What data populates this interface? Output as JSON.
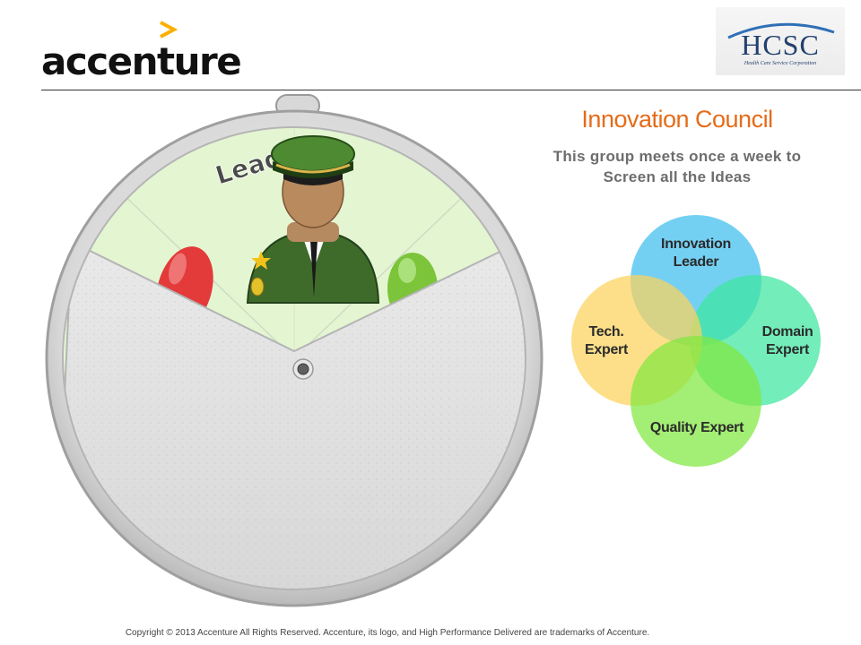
{
  "header": {
    "left_logo_text": "accenture",
    "right_logo_text": "HCSC",
    "right_logo_subtext": "Health Care Service Corporation"
  },
  "wheel": {
    "segment_label": "Leader",
    "icon": "soldier-leader-icon"
  },
  "panel": {
    "title": "Innovation Council",
    "subtitle_line1": "This group meets once a week to",
    "subtitle_line2": "Screen all the Ideas"
  },
  "venn": {
    "circles": [
      {
        "label_line1": "Innovation",
        "label_line2": "Leader",
        "color": "#4dc3f0"
      },
      {
        "label_line1": "Domain",
        "label_line2": "Expert",
        "color": "#3de6a0"
      },
      {
        "label_line1": "Quality Expert",
        "label_line2": "",
        "color": "#7fe83e"
      },
      {
        "label_line1": "Tech.",
        "label_line2": "Expert",
        "color": "#fcd25c"
      }
    ]
  },
  "footer": {
    "copyright": "Copyright © 2013 Accenture  All Rights Reserved. Accenture, its logo, and High Performance Delivered are trademarks of Accenture."
  },
  "colors": {
    "accent_orange": "#e46c1a",
    "accenture_chevron": "#f9b000",
    "hcsc_blue": "#22406e"
  }
}
